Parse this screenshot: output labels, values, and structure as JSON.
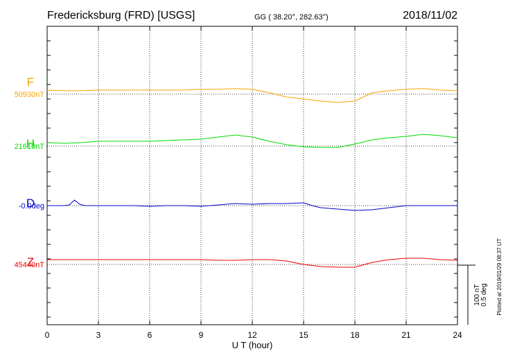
{
  "chart_data": {
    "type": "line",
    "title": "Fredericksburg (FRD)  [USGS]",
    "subtitle": "GG ( 38.20°, 282.63°)",
    "date": "2018/11/02",
    "xlabel": "U T (hour)",
    "xlim": [
      0,
      24
    ],
    "x_ticks": [
      "0",
      "3",
      "6",
      "9",
      "12",
      "15",
      "18",
      "21",
      "24"
    ],
    "grid": "dotted vertical every 3 hours",
    "scale_bar": {
      "line1": "100 nT",
      "line2": "0.5 deg"
    },
    "plotted_note": "Plotted at 2019/01/29 08:37 UT",
    "series": [
      {
        "name": "F",
        "baseline_label": "50930nT",
        "color": "#f5a300",
        "x": [
          0,
          1,
          2,
          3,
          4,
          5,
          6,
          7,
          8,
          9,
          10,
          11,
          12,
          13,
          14,
          15,
          16,
          17,
          18,
          19,
          20,
          21,
          22,
          23,
          24
        ],
        "values": [
          6,
          5,
          5,
          6,
          6,
          6,
          6,
          6,
          6,
          7,
          7,
          8,
          7,
          2,
          -4,
          -7,
          -10,
          -12,
          -10,
          2,
          5,
          7,
          8,
          6,
          5
        ]
      },
      {
        "name": "H",
        "baseline_label": "21610nT",
        "color": "#00dd00",
        "x": [
          0,
          1,
          2,
          3,
          4,
          5,
          6,
          7,
          8,
          9,
          10,
          11,
          12,
          13,
          14,
          15,
          16,
          17,
          18,
          19,
          20,
          21,
          22,
          23,
          24
        ],
        "values": [
          5,
          4,
          5,
          7,
          7,
          7,
          7,
          8,
          9,
          10,
          13,
          16,
          13,
          7,
          2,
          -1,
          -2,
          -2,
          3,
          9,
          12,
          14,
          17,
          15,
          12
        ]
      },
      {
        "name": "D",
        "baseline_label": "-0.0deg",
        "color": "#0000cc",
        "x": [
          0,
          1,
          1.3,
          1.6,
          1.9,
          2.2,
          3,
          4,
          5,
          6,
          7,
          8,
          9,
          10,
          11,
          12,
          13,
          14,
          15,
          15.5,
          16,
          17,
          18,
          19,
          20,
          21,
          22,
          23,
          24
        ],
        "values": [
          0,
          0,
          1,
          8,
          2,
          0,
          0,
          0,
          0,
          -1,
          0,
          0,
          -1,
          1,
          3,
          2,
          3,
          3,
          4,
          0,
          -3,
          -5,
          -7,
          -6,
          -3,
          0,
          0,
          0,
          0
        ]
      },
      {
        "name": "Z",
        "baseline_label": "45440nT",
        "color": "#ee0000",
        "x": [
          0,
          1,
          2,
          3,
          4,
          5,
          6,
          7,
          8,
          9,
          10,
          11,
          12,
          13,
          14,
          15,
          16,
          17,
          18,
          19,
          20,
          21,
          22,
          23,
          24
        ],
        "values": [
          7,
          7,
          7,
          7,
          7,
          7,
          7,
          7,
          7,
          7,
          6,
          6,
          7,
          7,
          5,
          0,
          -3,
          -4,
          -4,
          3,
          7,
          9,
          9,
          7,
          6
        ]
      }
    ]
  }
}
